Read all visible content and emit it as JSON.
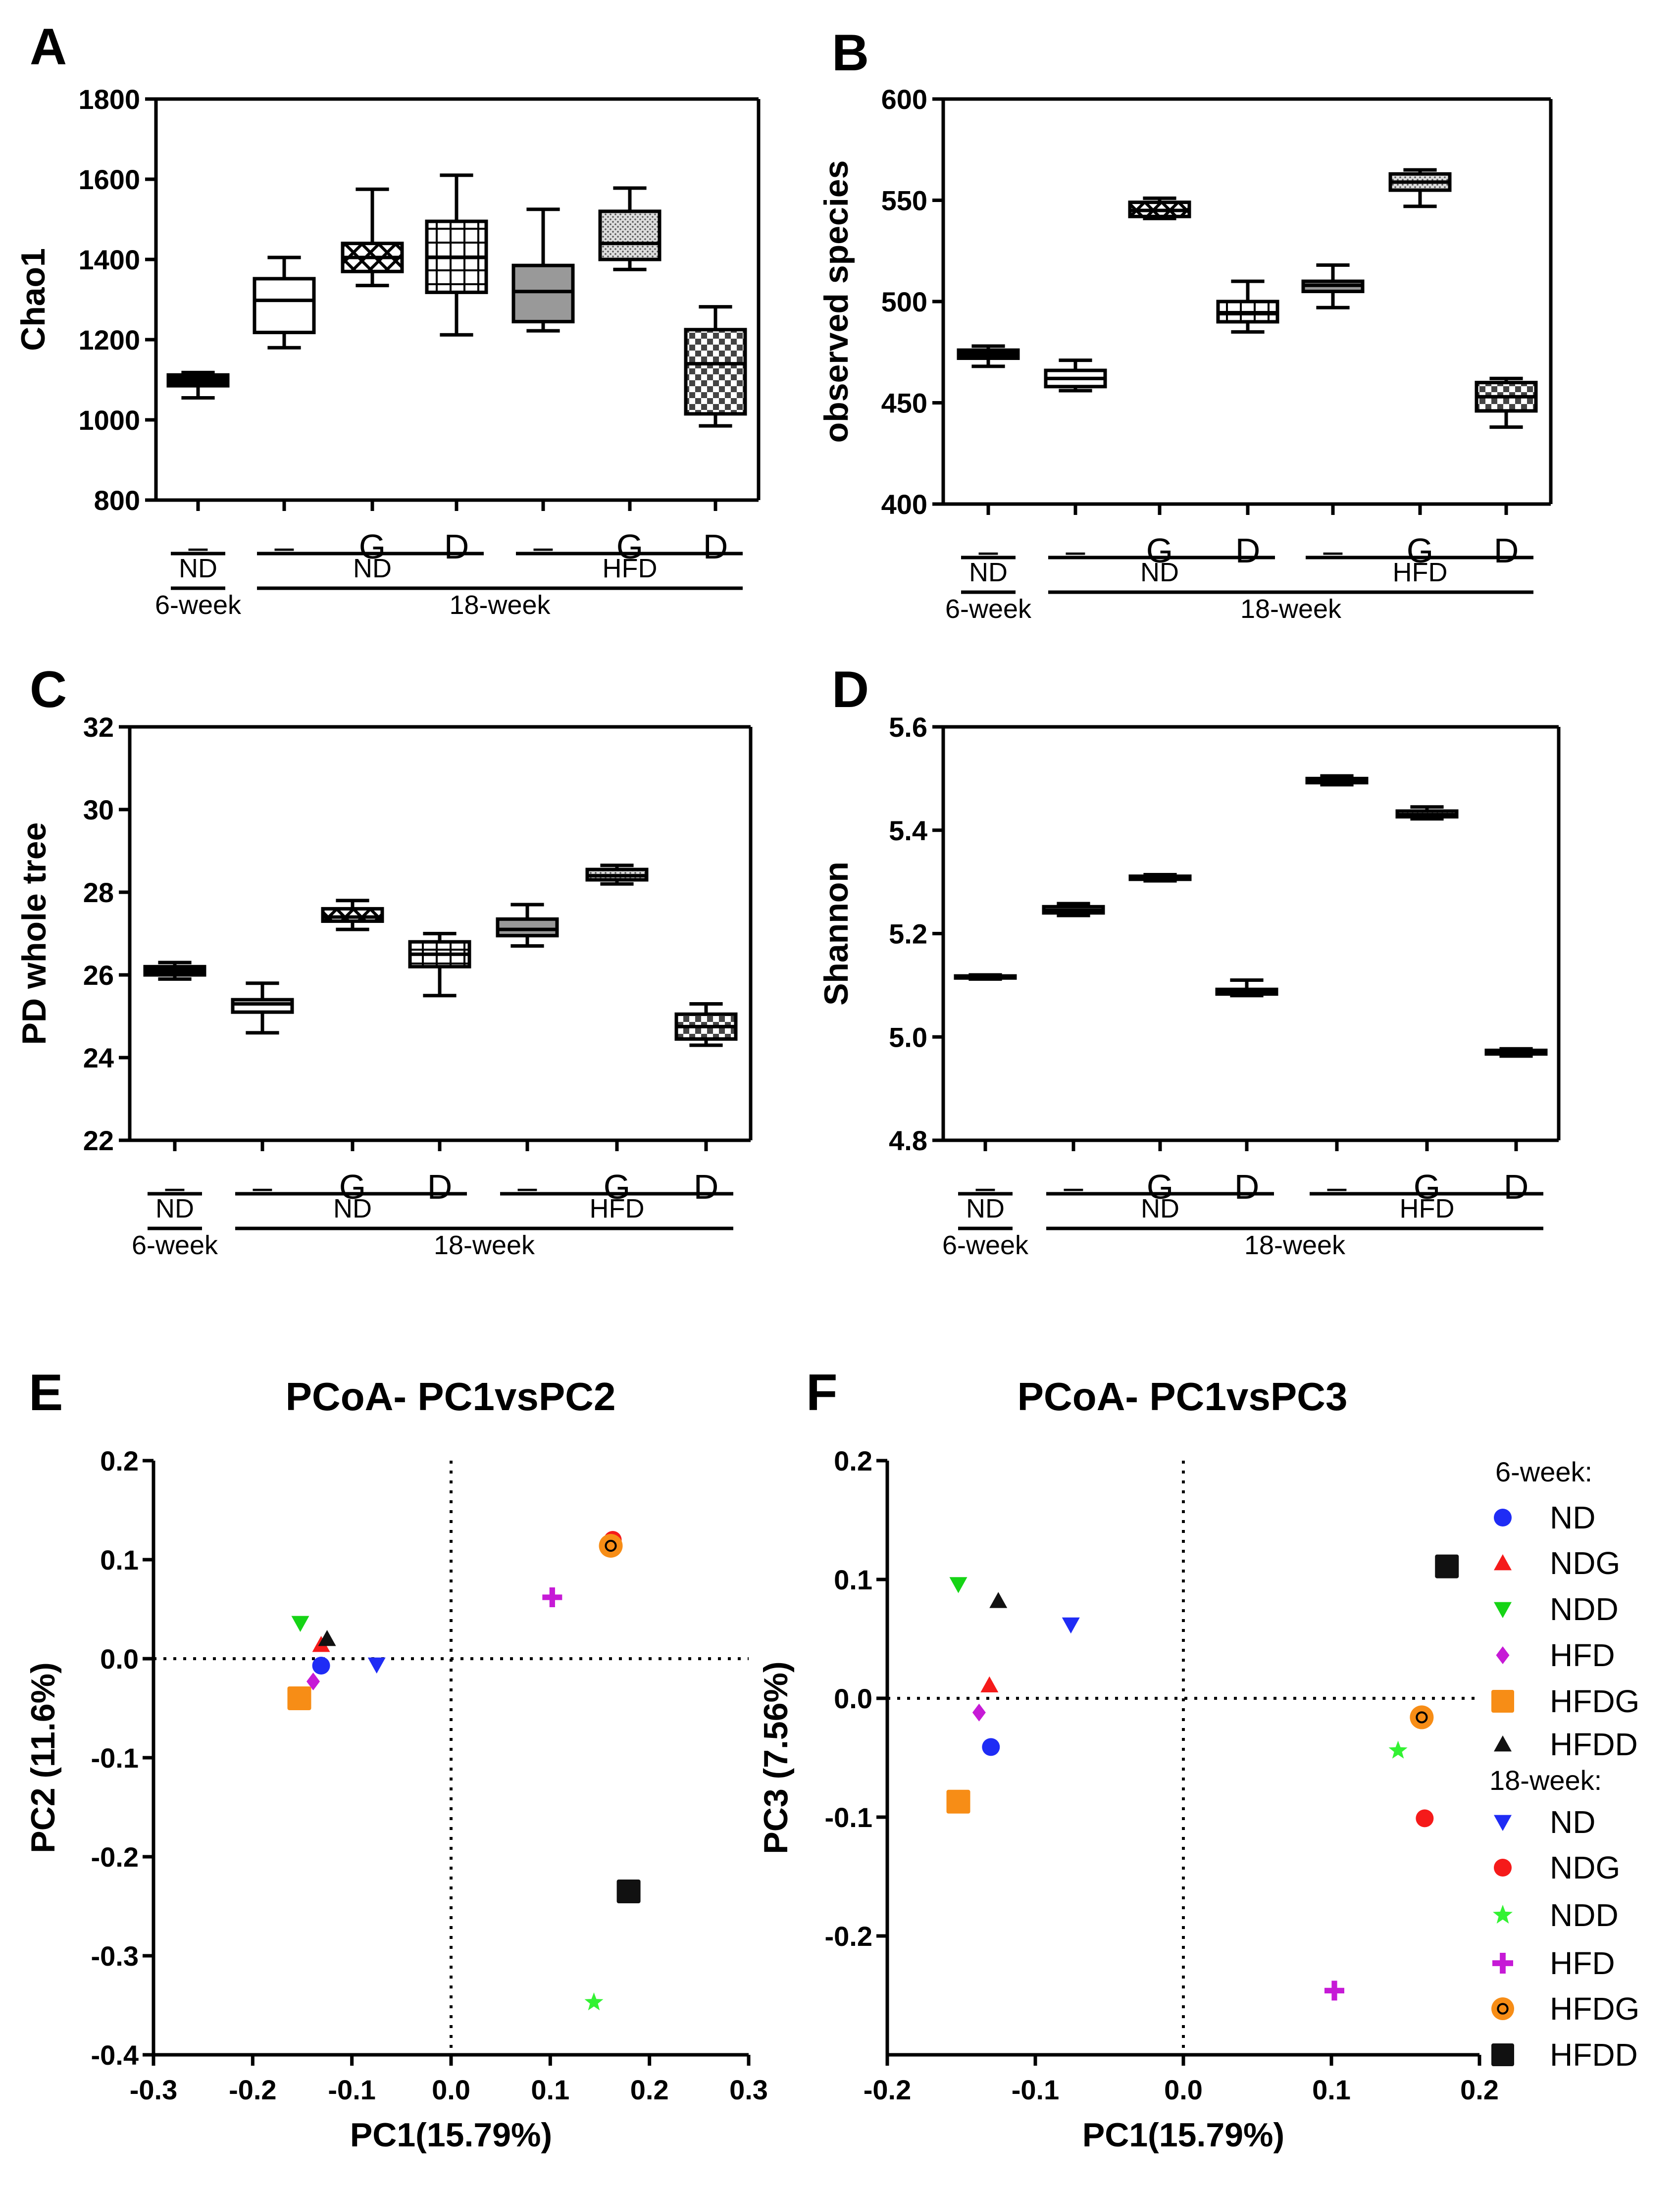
{
  "chart_data": [
    {
      "panel": "A",
      "type": "box",
      "title": "",
      "ylabel": "Chao1",
      "ylim": [
        800,
        1800
      ],
      "yticks": [
        800,
        1000,
        1200,
        1400,
        1600,
        1800
      ],
      "categories": [
        "–",
        "–",
        "G",
        "D",
        "–",
        "G",
        "D"
      ],
      "boxes": [
        {
          "min": 1055,
          "q1": 1085,
          "median": 1100,
          "q3": 1112,
          "max": 1118
        },
        {
          "min": 1180,
          "q1": 1218,
          "median": 1298,
          "q3": 1352,
          "max": 1405
        },
        {
          "min": 1335,
          "q1": 1370,
          "median": 1405,
          "q3": 1440,
          "max": 1575
        },
        {
          "min": 1212,
          "q1": 1318,
          "median": 1405,
          "q3": 1495,
          "max": 1610
        },
        {
          "min": 1222,
          "q1": 1245,
          "median": 1320,
          "q3": 1385,
          "max": 1525
        },
        {
          "min": 1375,
          "q1": 1400,
          "median": 1440,
          "q3": 1520,
          "max": 1578
        },
        {
          "min": 985,
          "q1": 1015,
          "median": 1140,
          "q3": 1225,
          "max": 1282
        }
      ],
      "group_labels": {
        "nd": "ND",
        "hfd": "HFD",
        "week6": "6-week",
        "week18": "18-week"
      }
    },
    {
      "panel": "B",
      "type": "box",
      "title": "",
      "ylabel": "observed species",
      "ylim": [
        400,
        600
      ],
      "yticks": [
        400,
        450,
        500,
        550,
        600
      ],
      "categories": [
        "–",
        "–",
        "G",
        "D",
        "–",
        "G",
        "D"
      ],
      "boxes": [
        {
          "min": 468,
          "q1": 472,
          "median": 474,
          "q3": 476,
          "max": 478
        },
        {
          "min": 456,
          "q1": 458,
          "median": 462,
          "q3": 466,
          "max": 471
        },
        {
          "min": 541,
          "q1": 542,
          "median": 545,
          "q3": 549,
          "max": 551
        },
        {
          "min": 485,
          "q1": 490,
          "median": 494,
          "q3": 500,
          "max": 510
        },
        {
          "min": 497,
          "q1": 505,
          "median": 508,
          "q3": 510,
          "max": 518
        },
        {
          "min": 547,
          "q1": 555,
          "median": 559,
          "q3": 563,
          "max": 565
        },
        {
          "min": 438,
          "q1": 446,
          "median": 453,
          "q3": 460,
          "max": 462
        }
      ],
      "group_labels": {
        "nd": "ND",
        "hfd": "HFD",
        "week6": "6-week",
        "week18": "18-week"
      }
    },
    {
      "panel": "C",
      "type": "box",
      "title": "",
      "ylabel": "PD whole tree",
      "ylim": [
        22,
        32
      ],
      "yticks": [
        22,
        24,
        26,
        28,
        30,
        32
      ],
      "categories": [
        "–",
        "–",
        "G",
        "D",
        "–",
        "G",
        "D"
      ],
      "boxes": [
        {
          "min": 25.9,
          "q1": 26.0,
          "median": 26.1,
          "q3": 26.2,
          "max": 26.3
        },
        {
          "min": 24.6,
          "q1": 25.1,
          "median": 25.3,
          "q3": 25.4,
          "max": 25.8
        },
        {
          "min": 27.1,
          "q1": 27.3,
          "median": 27.4,
          "q3": 27.6,
          "max": 27.8
        },
        {
          "min": 25.5,
          "q1": 26.2,
          "median": 26.5,
          "q3": 26.8,
          "max": 27.0
        },
        {
          "min": 26.7,
          "q1": 26.95,
          "median": 27.1,
          "q3": 27.35,
          "max": 27.7
        },
        {
          "min": 28.2,
          "q1": 28.3,
          "median": 28.4,
          "q3": 28.55,
          "max": 28.65
        },
        {
          "min": 24.3,
          "q1": 24.45,
          "median": 24.75,
          "q3": 25.05,
          "max": 25.3
        }
      ],
      "group_labels": {
        "nd": "ND",
        "hfd": "HFD",
        "week6": "6-week",
        "week18": "18-week"
      }
    },
    {
      "panel": "D",
      "type": "box",
      "title": "",
      "ylabel": "Shannon",
      "ylim": [
        4.8,
        5.6
      ],
      "yticks": [
        4.8,
        5.0,
        5.2,
        5.4,
        5.6
      ],
      "categories": [
        "–",
        "–",
        "G",
        "D",
        "–",
        "G",
        "D"
      ],
      "boxes": [
        {
          "min": 5.112,
          "q1": 5.114,
          "median": 5.116,
          "q3": 5.118,
          "max": 5.12
        },
        {
          "min": 5.235,
          "q1": 5.24,
          "median": 5.245,
          "q3": 5.252,
          "max": 5.258
        },
        {
          "min": 5.302,
          "q1": 5.305,
          "median": 5.308,
          "q3": 5.311,
          "max": 5.314
        },
        {
          "min": 5.08,
          "q1": 5.083,
          "median": 5.087,
          "q3": 5.092,
          "max": 5.11
        },
        {
          "min": 5.488,
          "q1": 5.492,
          "median": 5.495,
          "q3": 5.5,
          "max": 5.505
        },
        {
          "min": 5.422,
          "q1": 5.426,
          "median": 5.43,
          "q3": 5.437,
          "max": 5.445
        },
        {
          "min": 4.963,
          "q1": 4.967,
          "median": 4.97,
          "q3": 4.974,
          "max": 4.977
        }
      ],
      "group_labels": {
        "nd": "ND",
        "hfd": "HFD",
        "week6": "6-week",
        "week18": "18-week"
      }
    },
    {
      "panel": "E",
      "type": "scatter",
      "title": "PCoA- PC1vsPC2",
      "xlabel": "PC1(15.79%)",
      "ylabel": "PC2 (11.6%)",
      "xlim": [
        -0.3,
        0.3
      ],
      "ylim": [
        -0.4,
        0.2
      ],
      "xticks": [
        -0.3,
        -0.2,
        -0.1,
        0.0,
        0.1,
        0.2,
        0.3
      ],
      "yticks": [
        -0.4,
        -0.3,
        -0.2,
        -0.1,
        0.0,
        0.1,
        0.2
      ],
      "points": [
        {
          "series": "6-week ND",
          "x": -0.131,
          "y": -0.007
        },
        {
          "series": "6-week NDG",
          "x": -0.131,
          "y": 0.014
        },
        {
          "series": "6-week NDD",
          "x": -0.152,
          "y": 0.036
        },
        {
          "series": "6-week HFD",
          "x": -0.139,
          "y": -0.023
        },
        {
          "series": "6-week HFDG",
          "x": -0.153,
          "y": -0.04
        },
        {
          "series": "6-week HFDD",
          "x": -0.125,
          "y": 0.02
        },
        {
          "series": "18-week ND",
          "x": -0.075,
          "y": -0.006
        },
        {
          "series": "18-week NDG",
          "x": 0.163,
          "y": 0.12
        },
        {
          "series": "18-week NDD",
          "x": 0.144,
          "y": -0.347
        },
        {
          "series": "18-week HFD",
          "x": 0.102,
          "y": 0.062
        },
        {
          "series": "18-week HFDG",
          "x": 0.161,
          "y": 0.114
        },
        {
          "series": "18-week HFDD",
          "x": 0.179,
          "y": -0.235
        }
      ]
    },
    {
      "panel": "F",
      "type": "scatter",
      "title": "PCoA- PC1vsPC3",
      "xlabel": "PC1(15.79%)",
      "ylabel": "PC3 (7.56%)",
      "xlim": [
        -0.2,
        0.2
      ],
      "ylim": [
        -0.3,
        0.2
      ],
      "xticks": [
        -0.2,
        -0.1,
        0.0,
        0.1,
        0.2
      ],
      "yticks": [
        -0.2,
        -0.1,
        0.0,
        0.1,
        0.2
      ],
      "points": [
        {
          "series": "6-week ND",
          "x": -0.13,
          "y": -0.041
        },
        {
          "series": "6-week NDG",
          "x": -0.131,
          "y": 0.011
        },
        {
          "series": "6-week NDD",
          "x": -0.152,
          "y": 0.096
        },
        {
          "series": "6-week HFD",
          "x": -0.138,
          "y": -0.012
        },
        {
          "series": "6-week HFDG",
          "x": -0.152,
          "y": -0.087
        },
        {
          "series": "6-week HFDD",
          "x": -0.125,
          "y": 0.082
        },
        {
          "series": "18-week ND",
          "x": -0.076,
          "y": 0.062
        },
        {
          "series": "18-week NDG",
          "x": 0.163,
          "y": -0.101
        },
        {
          "series": "18-week NDD",
          "x": 0.145,
          "y": -0.044
        },
        {
          "series": "18-week HFD",
          "x": 0.102,
          "y": -0.246
        },
        {
          "series": "18-week HFDG",
          "x": 0.161,
          "y": -0.016
        },
        {
          "series": "18-week HFDD",
          "x": 0.178,
          "y": 0.111
        }
      ]
    }
  ],
  "panel_letters": [
    "A",
    "B",
    "C",
    "D",
    "E",
    "F"
  ],
  "legend": {
    "header_6week": "6-week:",
    "header_18week": "18-week:",
    "entries": [
      {
        "series": "6-week ND",
        "label": "ND",
        "marker": "circle",
        "color": "#1f2cf5"
      },
      {
        "series": "6-week NDG",
        "label": "NDG",
        "marker": "triangle-up",
        "color": "#f51a1a"
      },
      {
        "series": "6-week NDD",
        "label": "NDD",
        "marker": "triangle-down",
        "color": "#16d416"
      },
      {
        "series": "6-week HFD",
        "label": "HFD",
        "marker": "diamond",
        "color": "#c61ad6"
      },
      {
        "series": "6-week HFDG",
        "label": "HFDG",
        "marker": "square",
        "color": "#f78d16"
      },
      {
        "series": "6-week HFDD",
        "label": "HFDD",
        "marker": "triangle-up",
        "color": "#111111"
      },
      {
        "series": "18-week ND",
        "label": "ND",
        "marker": "triangle-down",
        "color": "#1f2cf5"
      },
      {
        "series": "18-week NDG",
        "label": "NDG",
        "marker": "circle",
        "color": "#f51a1a"
      },
      {
        "series": "18-week NDD",
        "label": "NDD",
        "marker": "star",
        "color": "#33f233"
      },
      {
        "series": "18-week HFD",
        "label": "HFD",
        "marker": "plus",
        "color": "#c61ad6"
      },
      {
        "series": "18-week HFDG",
        "label": "HFDG",
        "marker": "ring",
        "color": "#f78d16"
      },
      {
        "series": "18-week HFDD",
        "label": "HFDD",
        "marker": "square",
        "color": "#111111"
      }
    ]
  }
}
